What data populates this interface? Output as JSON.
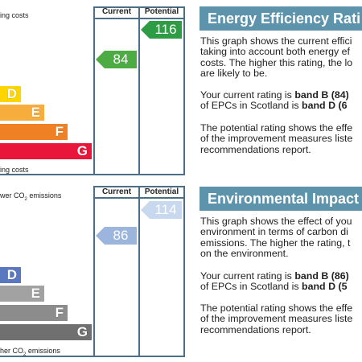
{
  "colors": {
    "frame": "#4a6f86",
    "title_bg": "#5d93ab",
    "band_D": "#ffd500",
    "band_E": "#f7ad3b",
    "band_F": "#ef8023",
    "band_G": "#e9153b",
    "ei_D": "#5a78c0",
    "ei_E": "#a2a2a2",
    "ei_F": "#8c8c8c",
    "ei_G": "#707070",
    "current_ee": "#4cab42",
    "potential_ee": "#2e9c44",
    "current_ei": "#9bb5dd",
    "potential_ei": "#c8d8ee"
  },
  "energy_efficiency": {
    "top_label": "ing costs",
    "bottom_label": "ing costs",
    "header_current": "Current",
    "header_potential": "Potential",
    "bands": [
      {
        "letter": "D",
        "name": "band-d"
      },
      {
        "letter": "E",
        "name": "band-e"
      },
      {
        "letter": "F",
        "name": "band-f"
      },
      {
        "letter": "G",
        "name": "band-g"
      }
    ],
    "current_value": "84",
    "potential_value": "116",
    "panel": {
      "title": "Energy Efficiency Rati",
      "para1": [
        "This graph shows the current effici",
        "taking into account both energy ef",
        "costs. The higher this rating, the lo",
        "are likely to be."
      ],
      "para2_line1_prefix": "Your current rating is ",
      "para2_line1_bold": "band B (84)",
      "para2_line2_prefix": "of EPCs in Scotland is ",
      "para2_line2_bold": "band D (6",
      "para3": [
        "The potential rating shows the effe",
        "of the improvement measures liste",
        "recommendations report."
      ]
    }
  },
  "environmental_impact": {
    "top_label_prefix": "wer CO",
    "top_label_sub": "2",
    "top_label_suffix": " emissions",
    "bottom_label_prefix": "her CO",
    "bottom_label_sub": "2",
    "bottom_label_suffix": " emissions",
    "header_current": "Current",
    "header_potential": "Potential",
    "bands": [
      {
        "letter": "D",
        "name": "band-d"
      },
      {
        "letter": "E",
        "name": "band-e"
      },
      {
        "letter": "F",
        "name": "band-f"
      },
      {
        "letter": "G",
        "name": "band-g"
      }
    ],
    "current_value": "86",
    "potential_value": "114",
    "panel": {
      "title": "Environmental Impact",
      "para1": [
        "This graph shows the effect of you",
        "environment in terms of carbon di",
        "emissions. The higher the rating, t",
        "on the environment."
      ],
      "para2_line1_prefix": "Your current rating is ",
      "para2_line1_bold": "band B (86)",
      "para2_line2_prefix": "of EPCs in Scotland is ",
      "para2_line2_bold": "band D (5",
      "para3": [
        "The potential rating shows the effe",
        "of the improvement measures liste",
        "recommendations report."
      ]
    }
  }
}
